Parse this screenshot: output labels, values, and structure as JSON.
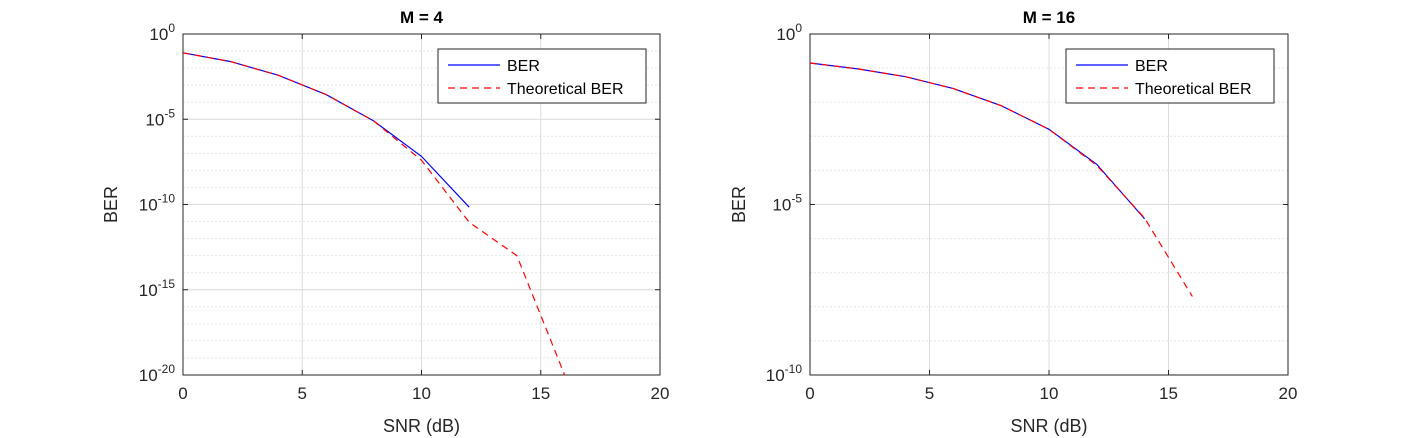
{
  "chart_data": [
    {
      "type": "line",
      "title": "M = 4",
      "xlabel": "SNR (dB)",
      "ylabel": "BER",
      "yscale": "log",
      "xlim": [
        0,
        20
      ],
      "ylim": [
        1e-20,
        1
      ],
      "xticks": [
        0,
        5,
        10,
        15,
        20
      ],
      "yticks": [
        {
          "base": "10",
          "exp": "0",
          "value": 1
        },
        {
          "base": "10",
          "exp": "-5",
          "value": 1e-05
        },
        {
          "base": "10",
          "exp": "-10",
          "value": 1e-10
        },
        {
          "base": "10",
          "exp": "-15",
          "value": 1e-15
        },
        {
          "base": "10",
          "exp": "-20",
          "value": 1e-20
        }
      ],
      "grid": true,
      "legend_position": "top-right",
      "series": [
        {
          "name": "BER",
          "color": "#0000ff",
          "style": "solid",
          "x": [
            0,
            2,
            4,
            6,
            8,
            10,
            12
          ],
          "y": [
            0.079,
            0.024,
            0.0038,
            0.00028,
            7.9e-06,
            6.6e-08,
            6.9e-11
          ]
        },
        {
          "name": "Theoretical BER",
          "color": "#ff0000",
          "style": "dashed",
          "x": [
            0,
            2,
            4,
            6,
            8,
            10,
            12,
            14,
            16
          ],
          "y": [
            0.079,
            0.024,
            0.0038,
            0.00028,
            7.9e-06,
            3.9e-08,
            9e-12,
            1e-13,
            1e-20
          ]
        }
      ]
    },
    {
      "type": "line",
      "title": "M = 16",
      "xlabel": "SNR (dB)",
      "ylabel": "BER",
      "yscale": "log",
      "xlim": [
        0,
        20
      ],
      "ylim": [
        1e-10,
        1
      ],
      "xticks": [
        0,
        5,
        10,
        15,
        20
      ],
      "yticks": [
        {
          "base": "10",
          "exp": "0",
          "value": 1
        },
        {
          "base": "10",
          "exp": "-5",
          "value": 1e-05
        },
        {
          "base": "10",
          "exp": "-10",
          "value": 1e-10
        }
      ],
      "grid": true,
      "legend_position": "top-right",
      "series": [
        {
          "name": "BER",
          "color": "#0000ff",
          "style": "solid",
          "x": [
            0,
            2,
            4,
            6,
            8,
            10,
            12,
            14
          ],
          "y": [
            0.141,
            0.095,
            0.056,
            0.025,
            0.0079,
            0.0016,
            0.00015,
            3.8e-06
          ]
        },
        {
          "name": "Theoretical BER",
          "color": "#ff0000",
          "style": "dashed",
          "x": [
            0,
            2,
            4,
            6,
            8,
            10,
            12,
            14,
            16
          ],
          "y": [
            0.141,
            0.095,
            0.056,
            0.025,
            0.0079,
            0.0016,
            0.00014,
            4e-06,
            2e-08
          ]
        }
      ]
    }
  ]
}
